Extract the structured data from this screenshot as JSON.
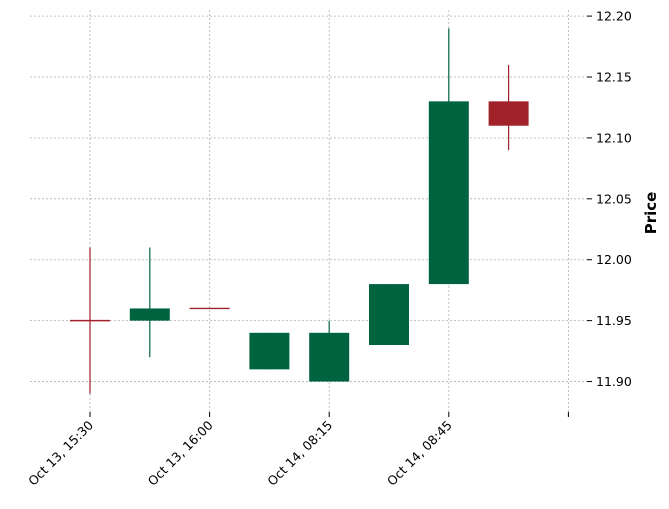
{
  "chart_data": {
    "type": "candlestick",
    "ylabel": "Price",
    "ylim": [
      11.875,
      12.205
    ],
    "y_ticks": [
      "11.90",
      "11.95",
      "12.00",
      "12.05",
      "12.10",
      "12.15",
      "12.20"
    ],
    "x_tick_labels": [
      "Oct 13, 15:30",
      "Oct 13, 16:00",
      "Oct 14, 08:15",
      "Oct 14, 08:45",
      ""
    ],
    "x_tick_positions": [
      0,
      2,
      4,
      6,
      8
    ],
    "grid": true,
    "colors": {
      "up": "#006340",
      "down": "#a02128"
    },
    "candles": [
      {
        "open": 11.95,
        "high": 12.01,
        "low": 11.89,
        "close": 11.95
      },
      {
        "open": 11.95,
        "high": 12.01,
        "low": 11.92,
        "close": 11.96
      },
      {
        "open": 11.96,
        "high": 11.96,
        "low": 11.96,
        "close": 11.96
      },
      {
        "open": 11.91,
        "high": 11.94,
        "low": 11.91,
        "close": 11.94
      },
      {
        "open": 11.9,
        "high": 11.95,
        "low": 11.9,
        "close": 11.94
      },
      {
        "open": 11.93,
        "high": 11.98,
        "low": 11.93,
        "close": 11.98
      },
      {
        "open": 11.98,
        "high": 12.19,
        "low": 11.98,
        "close": 12.13
      },
      {
        "open": 12.13,
        "high": 12.16,
        "low": 12.09,
        "close": 12.11
      }
    ]
  }
}
